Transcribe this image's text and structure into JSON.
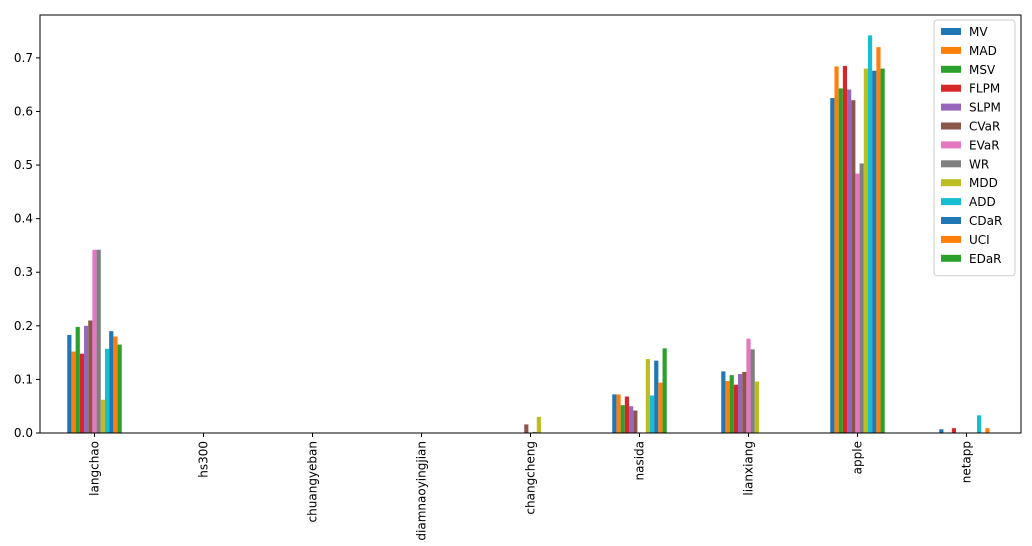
{
  "chart_data": {
    "type": "bar",
    "categories": [
      "langchao",
      "hs300",
      "chuangyeban",
      "diamnaoyingjian",
      "changcheng",
      "nasida",
      "lianxiang",
      "apple",
      "netapp"
    ],
    "series": [
      {
        "name": "MV",
        "color": "#1f77b4",
        "values": [
          0.183,
          0,
          0,
          0,
          0,
          0.072,
          0.115,
          0.625,
          0.007
        ]
      },
      {
        "name": "MAD",
        "color": "#ff7f0e",
        "values": [
          0.152,
          0,
          0,
          0,
          0,
          0.072,
          0.097,
          0.684,
          0
        ]
      },
      {
        "name": "MSV",
        "color": "#2ca02c",
        "values": [
          0.198,
          0,
          0,
          0,
          0,
          0.052,
          0.108,
          0.643,
          0
        ]
      },
      {
        "name": "FLPM",
        "color": "#d62728",
        "values": [
          0.148,
          0,
          0,
          0,
          0,
          0.068,
          0.09,
          0.685,
          0.009
        ]
      },
      {
        "name": "SLPM",
        "color": "#9467bd",
        "values": [
          0.2,
          0,
          0,
          0,
          0,
          0.05,
          0.11,
          0.641,
          0
        ]
      },
      {
        "name": "CVaR",
        "color": "#8c564b",
        "values": [
          0.21,
          0,
          0,
          0,
          0.016,
          0.042,
          0.114,
          0.621,
          0
        ]
      },
      {
        "name": "EVaR",
        "color": "#e377c2",
        "values": [
          0.342,
          0,
          0,
          0,
          0,
          0,
          0.176,
          0.484,
          0
        ]
      },
      {
        "name": "WR",
        "color": "#7f7f7f",
        "values": [
          0.342,
          0,
          0,
          0,
          0.002,
          0,
          0.156,
          0.503,
          0
        ]
      },
      {
        "name": "MDD",
        "color": "#bcbd22",
        "values": [
          0.062,
          0,
          0,
          0,
          0.03,
          0.138,
          0.096,
          0.68,
          0
        ]
      },
      {
        "name": "ADD",
        "color": "#17becf",
        "values": [
          0.157,
          0,
          0,
          0,
          0,
          0.07,
          0,
          0.742,
          0.033
        ]
      },
      {
        "name": "CDaR",
        "color": "#1f77b4",
        "values": [
          0.19,
          0,
          0,
          0,
          0,
          0.135,
          0,
          0.676,
          0
        ]
      },
      {
        "name": "UCI",
        "color": "#ff7f0e",
        "values": [
          0.18,
          0,
          0,
          0,
          0,
          0.094,
          0,
          0.72,
          0.009
        ]
      },
      {
        "name": "EDaR",
        "color": "#2ca02c",
        "values": [
          0.165,
          0,
          0,
          0,
          0,
          0.158,
          0,
          0.68,
          0
        ]
      }
    ],
    "ylim": [
      0,
      0.78
    ],
    "yticks": [
      {
        "value": 0,
        "label": "0.0"
      },
      0.1,
      0.2,
      0.3,
      0.4,
      0.5,
      0.6,
      0.7
    ],
    "legend": "upper right"
  }
}
